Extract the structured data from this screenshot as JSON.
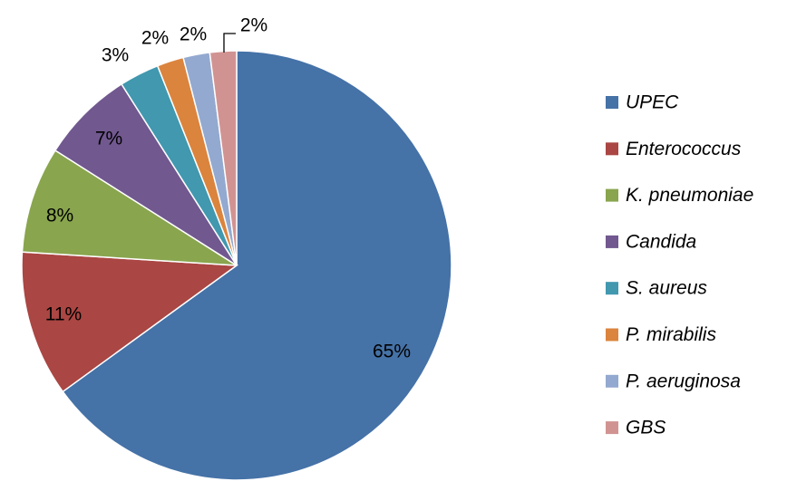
{
  "chart_data": {
    "type": "pie",
    "categories": [
      "UPEC",
      "Enterococcus",
      "K. pneumoniae",
      "Candida",
      "S. aureus",
      "P. mirabilis",
      "P. aeruginosa",
      "GBS"
    ],
    "values": [
      65,
      11,
      8,
      7,
      3,
      2,
      2,
      2
    ],
    "value_labels": [
      "65%",
      "11%",
      "8%",
      "7%",
      "3%",
      "2%",
      "2%",
      "2%"
    ],
    "colors": [
      "#4572a7",
      "#aa4643",
      "#89a54e",
      "#71588f",
      "#4198af",
      "#db843d",
      "#93a9cf",
      "#d19392"
    ],
    "legend_position": "right",
    "start_angle": "12 o'clock",
    "direction": "clockwise"
  }
}
